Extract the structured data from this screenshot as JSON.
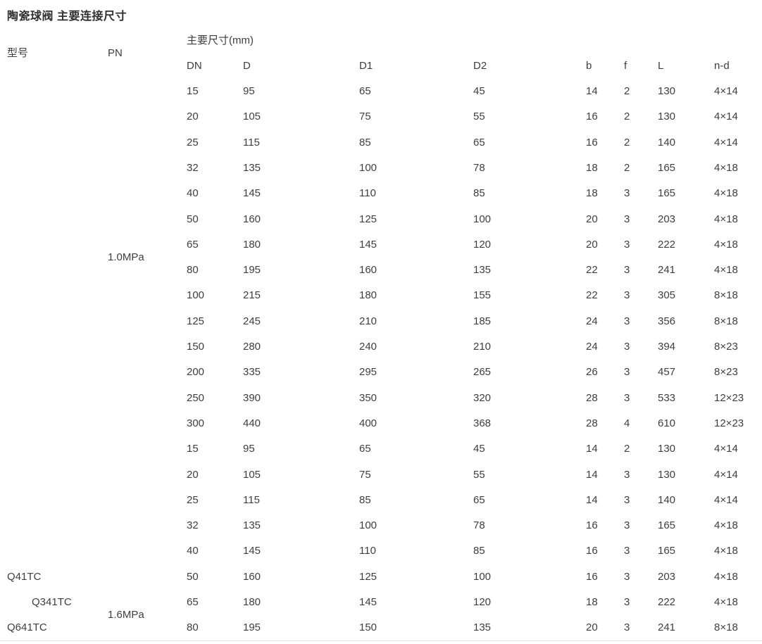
{
  "page": {
    "title": "陶瓷球阀 主要连接尺寸"
  },
  "colors": {
    "text": "#3e3e3e",
    "title": "#2f2f2f",
    "bottom_border": "#e6e6e6",
    "background": "#ffffff"
  },
  "table": {
    "col_group_header": "主要尺寸(mm)",
    "headers": {
      "model": "型号",
      "pn": "PN",
      "dims": [
        "DN",
        "D",
        "D1",
        "D2",
        "b",
        "f",
        "L",
        "n-d"
      ]
    },
    "models": [
      {
        "label": "Q41TC",
        "row": 20,
        "indent": 0
      },
      {
        "label": "Q341TC",
        "row": 21,
        "indent": 1
      },
      {
        "label": "Q641TC",
        "row": 22,
        "indent": 0
      }
    ],
    "pn_groups": [
      {
        "label": "1.0MPa",
        "centered_after_row": 7
      },
      {
        "label": "1.6MPa",
        "centered_after_row": 21
      }
    ],
    "rows": [
      [
        "15",
        "95",
        "65",
        "45",
        "14",
        "2",
        "130",
        "4×14"
      ],
      [
        "20",
        "105",
        "75",
        "55",
        "16",
        "2",
        "130",
        "4×14"
      ],
      [
        "25",
        "115",
        "85",
        "65",
        "16",
        "2",
        "140",
        "4×14"
      ],
      [
        "32",
        "135",
        "100",
        "78",
        "18",
        "2",
        "165",
        "4×18"
      ],
      [
        "40",
        "145",
        "110",
        "85",
        "18",
        "3",
        "165",
        "4×18"
      ],
      [
        "50",
        "160",
        "125",
        "100",
        "20",
        "3",
        "203",
        "4×18"
      ],
      [
        "65",
        "180",
        "145",
        "120",
        "20",
        "3",
        "222",
        "4×18"
      ],
      [
        "80",
        "195",
        "160",
        "135",
        "22",
        "3",
        "241",
        "4×18"
      ],
      [
        "100",
        "215",
        "180",
        "155",
        "22",
        "3",
        "305",
        "8×18"
      ],
      [
        "125",
        "245",
        "210",
        "185",
        "24",
        "3",
        "356",
        "8×18"
      ],
      [
        "150",
        "280",
        "240",
        "210",
        "24",
        "3",
        "394",
        "8×23"
      ],
      [
        "200",
        "335",
        "295",
        "265",
        "26",
        "3",
        "457",
        "8×23"
      ],
      [
        "250",
        "390",
        "350",
        "320",
        "28",
        "3",
        "533",
        "12×23"
      ],
      [
        "300",
        "440",
        "400",
        "368",
        "28",
        "4",
        "610",
        "12×23"
      ],
      [
        "15",
        "95",
        "65",
        "45",
        "14",
        "2",
        "130",
        "4×14"
      ],
      [
        "20",
        "105",
        "75",
        "55",
        "14",
        "3",
        "130",
        "4×14"
      ],
      [
        "25",
        "115",
        "85",
        "65",
        "14",
        "3",
        "140",
        "4×14"
      ],
      [
        "32",
        "135",
        "100",
        "78",
        "16",
        "3",
        "165",
        "4×18"
      ],
      [
        "40",
        "145",
        "110",
        "85",
        "16",
        "3",
        "165",
        "4×18"
      ],
      [
        "50",
        "160",
        "125",
        "100",
        "16",
        "3",
        "203",
        "4×18"
      ],
      [
        "65",
        "180",
        "145",
        "120",
        "18",
        "3",
        "222",
        "4×18"
      ],
      [
        "80",
        "195",
        "150",
        "135",
        "20",
        "3",
        "241",
        "8×18"
      ]
    ]
  }
}
